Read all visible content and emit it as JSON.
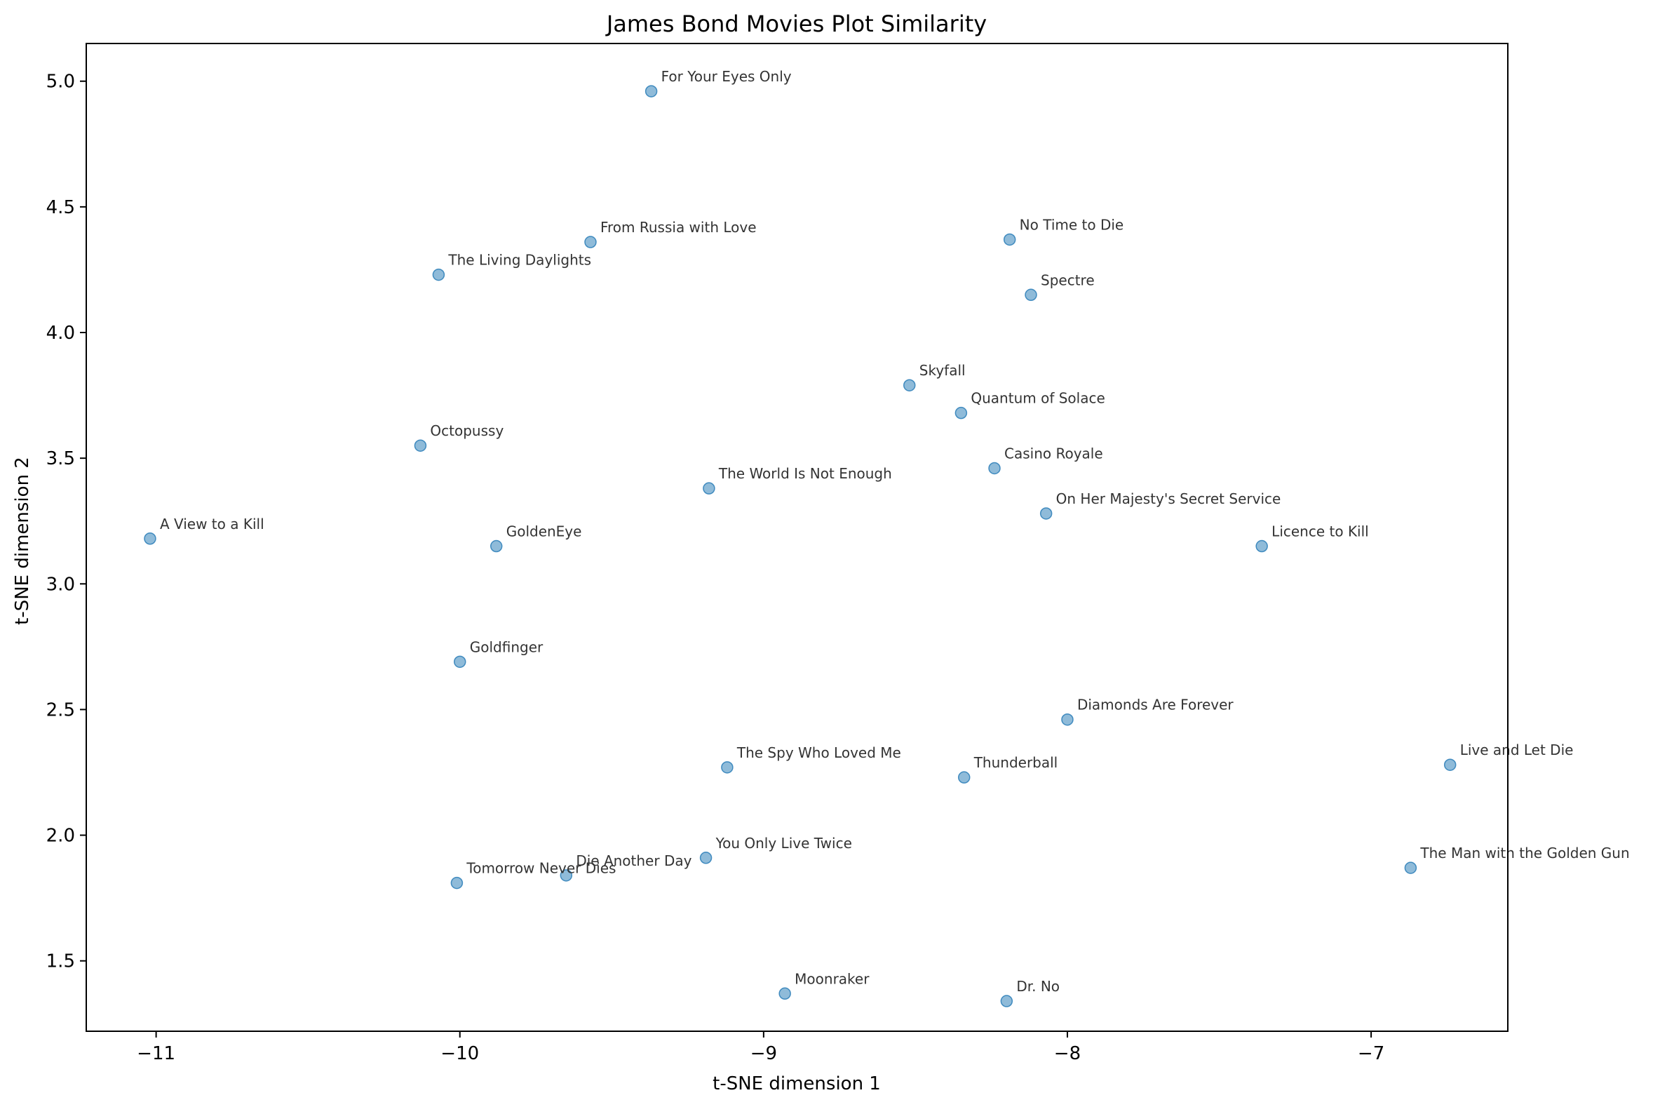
{
  "chart_data": {
    "type": "scatter",
    "title": "James Bond Movies Plot Similarity",
    "xlabel": "t-SNE dimension 1",
    "ylabel": "t-SNE dimension 2",
    "xlim": [
      -11.23,
      -6.55
    ],
    "ylim": [
      1.22,
      5.15
    ],
    "xticks": [
      -11,
      -10,
      -9,
      -8,
      -7
    ],
    "xtick_labels": [
      "−11",
      "−10",
      "−9",
      "−8",
      "−7"
    ],
    "yticks": [
      1.5,
      2.0,
      2.5,
      3.0,
      3.5,
      4.0,
      4.5,
      5.0
    ],
    "ytick_labels": [
      "1.5",
      "2.0",
      "2.5",
      "3.0",
      "3.5",
      "4.0",
      "4.5",
      "5.0"
    ],
    "grid": false,
    "legend": "none",
    "point_color": "#1f77b4",
    "points": [
      {
        "label": "For Your Eyes Only",
        "x": -9.37,
        "y": 4.96
      },
      {
        "label": "From Russia with Love",
        "x": -9.57,
        "y": 4.36
      },
      {
        "label": "The Living Daylights",
        "x": -10.07,
        "y": 4.23
      },
      {
        "label": "No Time to Die",
        "x": -8.19,
        "y": 4.37
      },
      {
        "label": "Spectre",
        "x": -8.12,
        "y": 4.15
      },
      {
        "label": "Skyfall",
        "x": -8.52,
        "y": 3.79
      },
      {
        "label": "Quantum of Solace",
        "x": -8.35,
        "y": 3.68
      },
      {
        "label": "Octopussy",
        "x": -10.13,
        "y": 3.55
      },
      {
        "label": "Casino Royale",
        "x": -8.24,
        "y": 3.46
      },
      {
        "label": "The World Is Not Enough",
        "x": -9.18,
        "y": 3.38
      },
      {
        "label": "On Her Majesty's Secret Service",
        "x": -8.07,
        "y": 3.28
      },
      {
        "label": "A View to a Kill",
        "x": -11.02,
        "y": 3.18
      },
      {
        "label": "GoldenEye",
        "x": -9.88,
        "y": 3.15
      },
      {
        "label": "Licence to Kill",
        "x": -7.36,
        "y": 3.15
      },
      {
        "label": "Goldfinger",
        "x": -10.0,
        "y": 2.69
      },
      {
        "label": "Diamonds Are Forever",
        "x": -8.0,
        "y": 2.46
      },
      {
        "label": "Live and Let Die",
        "x": -6.74,
        "y": 2.28
      },
      {
        "label": "The Spy Who Loved Me",
        "x": -9.12,
        "y": 2.27
      },
      {
        "label": "Thunderball",
        "x": -8.34,
        "y": 2.23
      },
      {
        "label": "You Only Live Twice",
        "x": -9.19,
        "y": 1.91
      },
      {
        "label": "The Man with the Golden Gun",
        "x": -6.87,
        "y": 1.87
      },
      {
        "label": "Die Another Day",
        "x": -9.65,
        "y": 1.84
      },
      {
        "label": "Tomorrow Never Dies",
        "x": -10.01,
        "y": 1.81
      },
      {
        "label": "Moonraker",
        "x": -8.93,
        "y": 1.37
      },
      {
        "label": "Dr. No",
        "x": -8.2,
        "y": 1.34
      }
    ]
  }
}
